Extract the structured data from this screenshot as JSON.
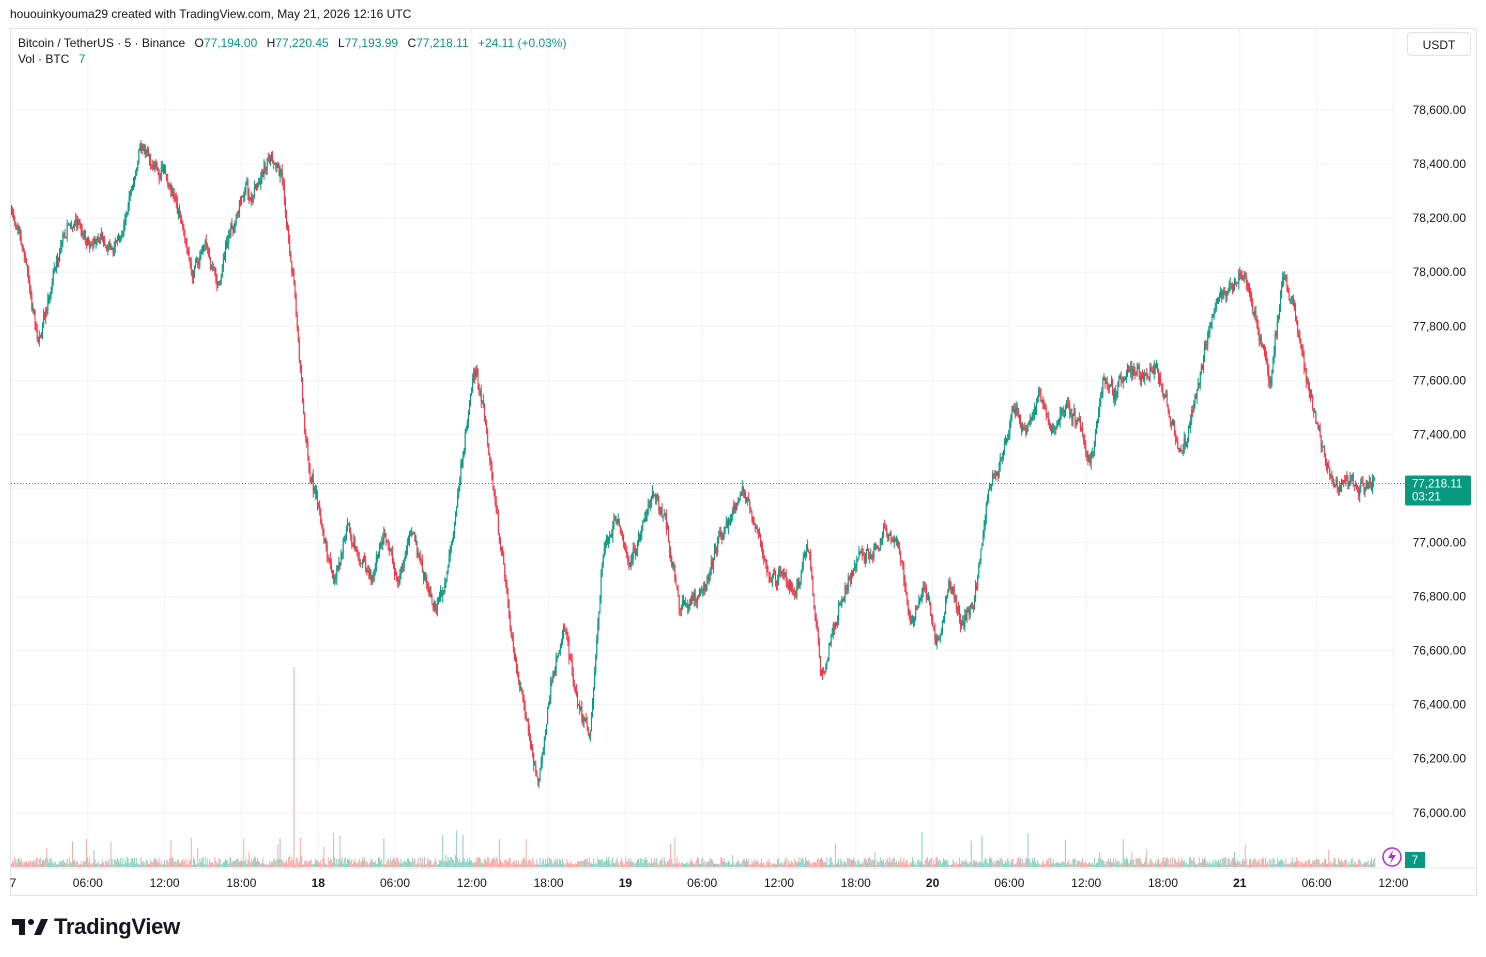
{
  "header": {
    "credit": "hououinkyouma29 created with TradingView.com, May 21, 2026 12:16 UTC"
  },
  "legend": {
    "symbol": "Bitcoin / TetherUS · 5 · Binance",
    "o_label": "O",
    "o_value": "77,194.00",
    "h_label": "H",
    "h_value": "77,220.45",
    "l_label": "L",
    "l_value": "77,193.99",
    "c_label": "C",
    "c_value": "77,218.11",
    "change": "+24.11 (+0.03%)",
    "vol_label": "Vol · BTC",
    "vol_value": "7"
  },
  "currency_button": "USDT",
  "last_price": {
    "value": "77,218.11",
    "countdown": "03:21"
  },
  "volume_badge": "7",
  "brand": "TradingView",
  "colors": {
    "up": "#089981",
    "down": "#f23645",
    "up_volume": "#8ad1c3",
    "down_volume": "#f7a9a7",
    "grid": "#f0f3fa",
    "last_price_tag": "#089981"
  },
  "chart_data": {
    "type": "candlestick",
    "symbol": "Bitcoin / TetherUS",
    "interval": "5",
    "exchange": "Binance",
    "y_ticks": [
      "76,000.00",
      "76,200.00",
      "76,400.00",
      "76,600.00",
      "76,800.00",
      "77,000.00",
      "77,200.00",
      "77,400.00",
      "77,600.00",
      "77,800.00",
      "78,000.00",
      "78,200.00",
      "78,400.00",
      "78,600.00"
    ],
    "ylim": [
      75900,
      78800
    ],
    "x_ticks": [
      "7",
      "06:00",
      "12:00",
      "18:00",
      "18",
      "06:00",
      "12:00",
      "18:00",
      "19",
      "06:00",
      "12:00",
      "18:00",
      "20",
      "06:00",
      "12:00",
      "18:00",
      "21",
      "06:00",
      "12:00"
    ],
    "xlim_hours": [
      0,
      106.3
    ],
    "grid": true,
    "price_path": [
      [
        0,
        78220
      ],
      [
        1,
        78050
      ],
      [
        2,
        77720
      ],
      [
        3,
        77950
      ],
      [
        4,
        78150
      ],
      [
        5,
        78200
      ],
      [
        6,
        78100
      ],
      [
        7,
        78120
      ],
      [
        8,
        78080
      ],
      [
        9,
        78250
      ],
      [
        10,
        78450
      ],
      [
        11,
        78400
      ],
      [
        12,
        78350
      ],
      [
        13,
        78200
      ],
      [
        14,
        78000
      ],
      [
        15,
        78100
      ],
      [
        16,
        77950
      ],
      [
        17,
        78150
      ],
      [
        18,
        78300
      ],
      [
        19,
        78300
      ],
      [
        20,
        78450
      ],
      [
        21,
        78350
      ],
      [
        22,
        77900
      ],
      [
        23,
        77300
      ],
      [
        24,
        77100
      ],
      [
        25,
        76850
      ],
      [
        26,
        77050
      ],
      [
        27,
        76950
      ],
      [
        28,
        76850
      ],
      [
        29,
        77050
      ],
      [
        30,
        76850
      ],
      [
        31,
        77050
      ],
      [
        32,
        76900
      ],
      [
        33,
        76750
      ],
      [
        34,
        76900
      ],
      [
        35,
        77300
      ],
      [
        36,
        77650
      ],
      [
        37,
        77400
      ],
      [
        38,
        77000
      ],
      [
        39,
        76600
      ],
      [
        40,
        76350
      ],
      [
        41,
        76100
      ],
      [
        42,
        76500
      ],
      [
        43,
        76700
      ],
      [
        44,
        76400
      ],
      [
        45,
        76300
      ],
      [
        46,
        76950
      ],
      [
        47,
        77100
      ],
      [
        48,
        76900
      ],
      [
        49,
        77050
      ],
      [
        50,
        77200
      ],
      [
        51,
        77050
      ],
      [
        52,
        76750
      ],
      [
        53,
        76800
      ],
      [
        54,
        76850
      ],
      [
        55,
        77000
      ],
      [
        56,
        77100
      ],
      [
        57,
        77200
      ],
      [
        58,
        77050
      ],
      [
        59,
        76850
      ],
      [
        60,
        76900
      ],
      [
        61,
        76800
      ],
      [
        62,
        77000
      ],
      [
        63,
        76500
      ],
      [
        64,
        76700
      ],
      [
        65,
        76850
      ],
      [
        66,
        76950
      ],
      [
        67,
        76950
      ],
      [
        68,
        77050
      ],
      [
        69,
        77000
      ],
      [
        70,
        76700
      ],
      [
        71,
        76850
      ],
      [
        72,
        76600
      ],
      [
        73,
        76850
      ],
      [
        74,
        76700
      ],
      [
        75,
        76800
      ],
      [
        76,
        77200
      ],
      [
        77,
        77300
      ],
      [
        78,
        77500
      ],
      [
        79,
        77400
      ],
      [
        80,
        77550
      ],
      [
        81,
        77400
      ],
      [
        82,
        77500
      ],
      [
        83,
        77450
      ],
      [
        84,
        77300
      ],
      [
        85,
        77600
      ],
      [
        86,
        77550
      ],
      [
        87,
        77650
      ],
      [
        88,
        77600
      ],
      [
        89,
        77650
      ],
      [
        90,
        77500
      ],
      [
        91,
        77300
      ],
      [
        92,
        77500
      ],
      [
        93,
        77750
      ],
      [
        94,
        77900
      ],
      [
        95,
        77950
      ],
      [
        96,
        78000
      ],
      [
        97,
        77800
      ],
      [
        98,
        77600
      ],
      [
        99,
        78000
      ],
      [
        100,
        77850
      ],
      [
        101,
        77550
      ],
      [
        102,
        77350
      ],
      [
        103,
        77200
      ],
      [
        104,
        77250
      ],
      [
        105,
        77200
      ],
      [
        106,
        77218
      ]
    ],
    "high": 78600,
    "low": 76060,
    "last": 77218.11
  }
}
